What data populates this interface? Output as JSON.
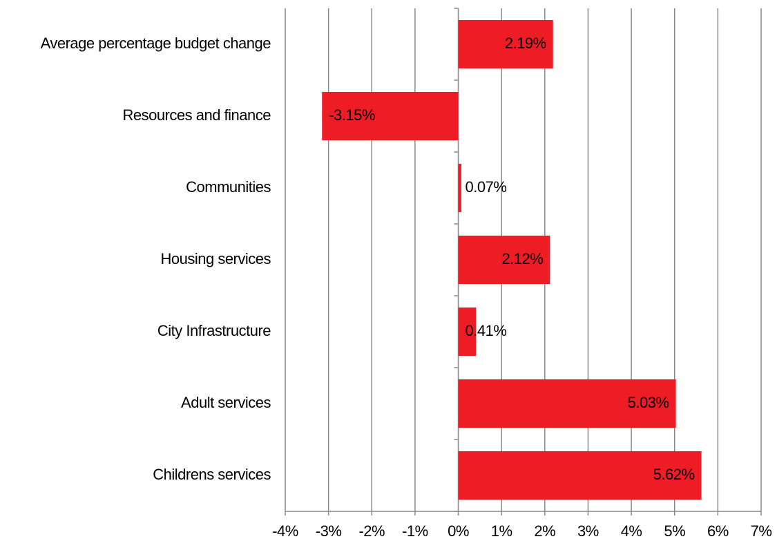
{
  "chart_data": {
    "type": "bar",
    "orientation": "horizontal",
    "categories": [
      "Average percentage budget change",
      "Resources and finance",
      "Communities",
      "Housing services",
      "City Infrastructure",
      "Adult services",
      "Childrens services"
    ],
    "values": [
      2.19,
      -3.15,
      0.07,
      2.12,
      0.41,
      5.03,
      5.62
    ],
    "value_labels": [
      "2.19%",
      "-3.15%",
      "0.07%",
      "2.12%",
      "0.41%",
      "5.03%",
      "5.62%"
    ],
    "color": "#ee1c25",
    "xlim": [
      -4,
      7
    ],
    "xticks": [
      {
        "value": -4,
        "label": "-4%"
      },
      {
        "value": -3,
        "label": "-3%"
      },
      {
        "value": -2,
        "label": "-2%"
      },
      {
        "value": -1,
        "label": "-1%"
      },
      {
        "value": 0,
        "label": "0%"
      },
      {
        "value": 1,
        "label": "1%"
      },
      {
        "value": 2,
        "label": "2%"
      },
      {
        "value": 3,
        "label": "3%"
      },
      {
        "value": 4,
        "label": "4%"
      },
      {
        "value": 5,
        "label": "5%"
      },
      {
        "value": 6,
        "label": "6%"
      },
      {
        "value": 7,
        "label": "7%"
      }
    ],
    "grid": true
  }
}
